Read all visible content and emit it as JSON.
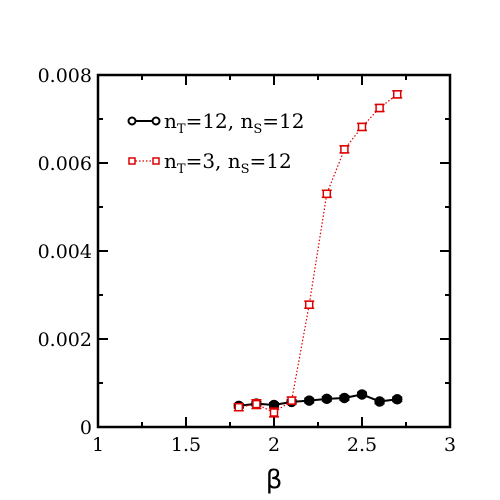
{
  "chart_data": {
    "type": "scatter",
    "title": "",
    "xlabel": "β",
    "ylabel": "",
    "xlim": [
      1,
      3
    ],
    "ylim": [
      0,
      0.008
    ],
    "xticks": [
      1,
      1.5,
      2,
      2.5,
      3
    ],
    "xtick_labels": [
      "1",
      "1.5",
      "2",
      "2.5",
      "3"
    ],
    "yticks": [
      0,
      0.002,
      0.004,
      0.006,
      0.008
    ],
    "ytick_labels": [
      "0",
      "0.002",
      "0.004",
      "0.006",
      "0.008"
    ],
    "grid": false,
    "legend_position": "top-left",
    "series": [
      {
        "legend": {
          "prefix": "n",
          "sub1": "T",
          "mid": "=12, n",
          "sub2": "S",
          "suffix": "=12"
        },
        "color": "#000000",
        "marker": "circle-filled",
        "line": "solid",
        "points": [
          {
            "x": 1.8,
            "y": 0.00048,
            "err": 5e-05
          },
          {
            "x": 1.9,
            "y": 0.00053,
            "err": 5e-05
          },
          {
            "x": 2.0,
            "y": 0.0005,
            "err": 5e-05
          },
          {
            "x": 2.1,
            "y": 0.00057,
            "err": 5e-05
          },
          {
            "x": 2.2,
            "y": 0.0006,
            "err": 5e-05
          },
          {
            "x": 2.3,
            "y": 0.00064,
            "err": 5e-05
          },
          {
            "x": 2.4,
            "y": 0.00066,
            "err": 5e-05
          },
          {
            "x": 2.5,
            "y": 0.00074,
            "err": 5e-05
          },
          {
            "x": 2.6,
            "y": 0.00058,
            "err": 5e-05
          },
          {
            "x": 2.7,
            "y": 0.00063,
            "err": 5e-05
          }
        ]
      },
      {
        "legend": {
          "prefix": "n",
          "sub1": "T",
          "mid": "=3, n",
          "sub2": "S",
          "suffix": "=12"
        },
        "color": "#dd0000",
        "marker": "square-open",
        "line": "dotted",
        "points": [
          {
            "x": 1.8,
            "y": 0.00045,
            "err": 8e-05
          },
          {
            "x": 1.9,
            "y": 0.00052,
            "err": 0.0001
          },
          {
            "x": 2.0,
            "y": 0.00033,
            "err": 0.0001
          },
          {
            "x": 2.1,
            "y": 0.0006,
            "err": 8e-05
          },
          {
            "x": 2.2,
            "y": 0.00278,
            "err": 8e-05
          },
          {
            "x": 2.3,
            "y": 0.0053,
            "err": 8e-05
          },
          {
            "x": 2.4,
            "y": 0.00631,
            "err": 8e-05
          },
          {
            "x": 2.5,
            "y": 0.00682,
            "err": 8e-05
          },
          {
            "x": 2.6,
            "y": 0.00725,
            "err": 8e-05
          },
          {
            "x": 2.7,
            "y": 0.00756,
            "err": 8e-05
          }
        ]
      }
    ]
  }
}
